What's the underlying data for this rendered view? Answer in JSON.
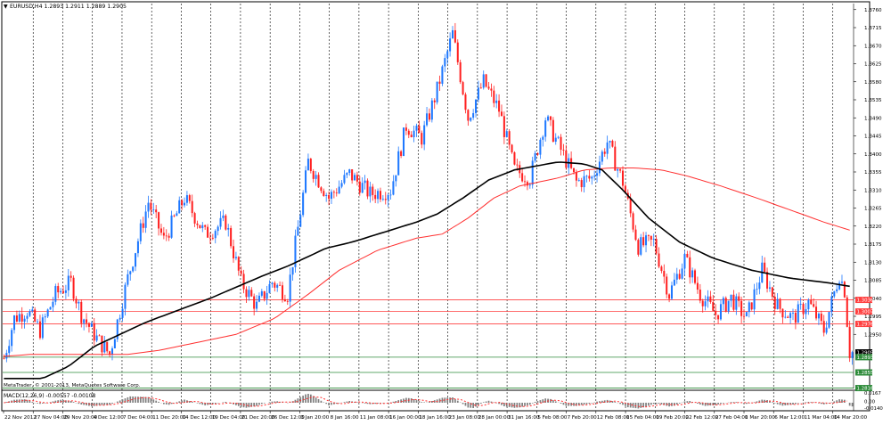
{
  "chart_header": {
    "symbol_line": "EURUSD,H4  1.2893 1.2911 1.2889 1.2905"
  },
  "macd_header": {
    "label": "MACD(12,26,9) -0.00557 -0.00108"
  },
  "copyright": {
    "line1": "MetaTrader, © 2001-2013, MetaQuotes Software Corp."
  },
  "colors": {
    "bull": "#1e78ff",
    "bear": "#ff2020",
    "ma_slow": "#000000",
    "ma_fast": "#ff3030",
    "hline_red": "#ff4040",
    "hline_green": "#2e8b3a",
    "price_tag": "#000000",
    "macd_hist": "#808080",
    "macd_signal": "#ff3030"
  },
  "chart_data": {
    "type": "candlestick",
    "symbol": "EURUSD",
    "timeframe": "H4",
    "ylim": [
      1.2815,
      1.3775
    ],
    "y_ticks": [
      "1.3760",
      "1.3715",
      "1.3670",
      "1.3625",
      "1.3580",
      "1.3535",
      "1.3490",
      "1.3445",
      "1.3400",
      "1.3355",
      "1.3310",
      "1.3265",
      "1.3220",
      "1.3175",
      "1.3130",
      "1.3085",
      "1.3040",
      "1.2995",
      "1.2950"
    ],
    "x_labels": [
      "22 Nov 2012",
      "27 Nov 04:00",
      "29 Nov 20:00",
      "4 Dec 12:00",
      "7 Dec 04:00",
      "11 Dec 20:00",
      "14 Dec 12:00",
      "19 Dec 04:00",
      "21 Dec 20:00",
      "26 Dec 12:00",
      "3 Jan 20:00",
      "8 Jan 16:00",
      "11 Jan 08:00",
      "16 Jan 00:00",
      "18 Jan 16:00",
      "23 Jan 08:00",
      "28 Jan 00:00",
      "31 Jan 16:00",
      "5 Feb 08:00",
      "7 Feb 20:00",
      "12 Feb 08:00",
      "15 Feb 04:00",
      "19 Feb 20:00",
      "22 Feb 12:00",
      "27 Feb 04:00",
      "1 Mar 20:00",
      "6 Mar 12:00",
      "11 Mar 04:00",
      "14 Mar 20:00"
    ],
    "anchors": [
      [
        0,
        1.289
      ],
      [
        4,
        1.299
      ],
      [
        9,
        1.301
      ],
      [
        14,
        1.296
      ],
      [
        20,
        1.305
      ],
      [
        26,
        1.308
      ],
      [
        30,
        1.3
      ],
      [
        36,
        1.294
      ],
      [
        41,
        1.29
      ],
      [
        48,
        1.309
      ],
      [
        56,
        1.328
      ],
      [
        62,
        1.3185
      ],
      [
        70,
        1.329
      ],
      [
        78,
        1.32
      ],
      [
        86,
        1.323
      ],
      [
        92,
        1.308
      ],
      [
        98,
        1.302
      ],
      [
        104,
        1.308
      ],
      [
        110,
        1.305
      ],
      [
        118,
        1.338
      ],
      [
        126,
        1.329
      ],
      [
        134,
        1.335
      ],
      [
        142,
        1.33
      ],
      [
        150,
        1.331
      ],
      [
        156,
        1.347
      ],
      [
        162,
        1.344
      ],
      [
        168,
        1.356
      ],
      [
        174,
        1.37
      ],
      [
        180,
        1.349
      ],
      [
        186,
        1.358
      ],
      [
        192,
        1.351
      ],
      [
        198,
        1.336
      ],
      [
        204,
        1.334
      ],
      [
        210,
        1.349
      ],
      [
        216,
        1.341
      ],
      [
        222,
        1.333
      ],
      [
        228,
        1.334
      ],
      [
        234,
        1.343
      ],
      [
        240,
        1.333
      ],
      [
        246,
        1.317
      ],
      [
        252,
        1.318
      ],
      [
        258,
        1.305
      ],
      [
        264,
        1.314
      ],
      [
        270,
        1.305
      ],
      [
        276,
        1.3
      ],
      [
        282,
        1.304
      ],
      [
        288,
        1.299
      ],
      [
        294,
        1.311
      ],
      [
        300,
        1.302
      ],
      [
        306,
        1.299
      ],
      [
        312,
        1.303
      ],
      [
        318,
        1.296
      ],
      [
        324,
        1.31
      ],
      [
        326,
        1.306
      ],
      [
        328,
        1.2905
      ]
    ],
    "ma_slow_anchors": [
      [
        0,
        1.284
      ],
      [
        15,
        1.284
      ],
      [
        25,
        1.287
      ],
      [
        35,
        1.292
      ],
      [
        55,
        1.298
      ],
      [
        80,
        1.304
      ],
      [
        100,
        1.3095
      ],
      [
        110,
        1.312
      ],
      [
        125,
        1.3165
      ],
      [
        135,
        1.318
      ],
      [
        145,
        1.32
      ],
      [
        160,
        1.323
      ],
      [
        168,
        1.325
      ],
      [
        178,
        1.329
      ],
      [
        188,
        1.3335
      ],
      [
        198,
        1.336
      ],
      [
        215,
        1.338
      ],
      [
        225,
        1.3375
      ],
      [
        232,
        1.336
      ],
      [
        240,
        1.331
      ],
      [
        250,
        1.324
      ],
      [
        262,
        1.318
      ],
      [
        275,
        1.314
      ],
      [
        290,
        1.311
      ],
      [
        305,
        1.309
      ],
      [
        318,
        1.308
      ],
      [
        328,
        1.307
      ]
    ],
    "ma_fast_anchors": [
      [
        0,
        1.2895
      ],
      [
        10,
        1.29
      ],
      [
        20,
        1.29
      ],
      [
        35,
        1.29
      ],
      [
        48,
        1.29
      ],
      [
        60,
        1.291
      ],
      [
        75,
        1.293
      ],
      [
        90,
        1.295
      ],
      [
        105,
        1.299
      ],
      [
        118,
        1.305
      ],
      [
        130,
        1.311
      ],
      [
        145,
        1.316
      ],
      [
        160,
        1.319
      ],
      [
        170,
        1.32
      ],
      [
        180,
        1.324
      ],
      [
        190,
        1.329
      ],
      [
        200,
        1.332
      ],
      [
        215,
        1.334
      ],
      [
        225,
        1.336
      ],
      [
        235,
        1.3365
      ],
      [
        245,
        1.3365
      ],
      [
        255,
        1.336
      ],
      [
        265,
        1.3345
      ],
      [
        278,
        1.332
      ],
      [
        292,
        1.329
      ],
      [
        305,
        1.326
      ],
      [
        318,
        1.323
      ],
      [
        328,
        1.321
      ]
    ],
    "hlines": [
      {
        "value": 1.3036,
        "label": "1.3036",
        "color": "red"
      },
      {
        "value": 1.3007,
        "label": "1.3007",
        "color": "red"
      },
      {
        "value": 1.2976,
        "label": "1.2976",
        "color": "red"
      },
      {
        "value": 1.2905,
        "label": "1.2905",
        "color": "current"
      },
      {
        "value": 1.2893,
        "label": "1.2893",
        "color": "green"
      },
      {
        "value": 1.2855,
        "label": "1.2855",
        "color": "green"
      },
      {
        "value": 1.2816,
        "label": "1.2816",
        "color": "green"
      }
    ],
    "macd": {
      "ylim": [
        -0.014,
        0.0167
      ],
      "y_ticks": [
        "0.0167",
        "0.00",
        "-0.0140"
      ],
      "last": -0.00557,
      "signal_last": -0.00108
    },
    "grid": "vertical-dashed",
    "bars": 330
  }
}
